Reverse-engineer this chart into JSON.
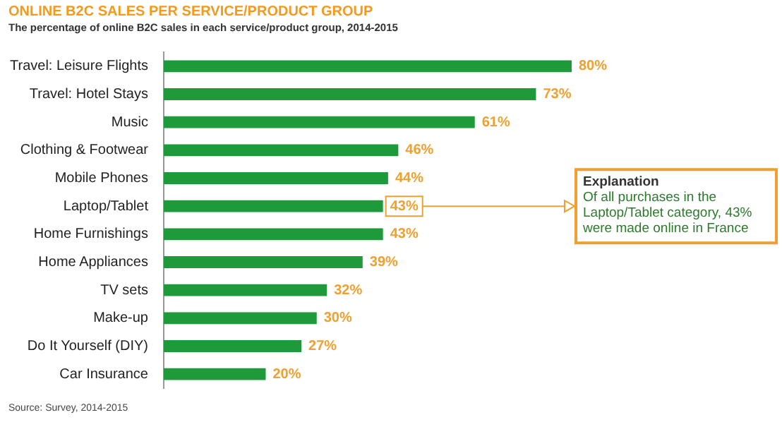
{
  "chart_data": {
    "type": "bar",
    "orientation": "horizontal",
    "title": "ONLINE B2C SALES PER SERVICE/PRODUCT GROUP",
    "subtitle": "The percentage of online B2C sales in each service/product group, 2014-2015",
    "categories": [
      "Travel: Leisure Flights",
      "Travel: Hotel Stays",
      "Music",
      "Clothing & Footwear",
      "Mobile Phones",
      "Laptop/Tablet",
      "Home Furnishings",
      "Home Appliances",
      "TV sets",
      "Make-up",
      "Do It Yourself (DIY)",
      "Car Insurance"
    ],
    "values": [
      80,
      73,
      61,
      46,
      44,
      43,
      43,
      39,
      32,
      30,
      27,
      20
    ],
    "value_labels": [
      "80%",
      "73%",
      "61%",
      "46%",
      "44%",
      "43%",
      "43%",
      "39%",
      "32%",
      "30%",
      "27%",
      "20%"
    ],
    "color": "#1e9a3a",
    "tick_labels": "y",
    "legend": false,
    "annotations": [
      "Explanation",
      "Of all purchases in the Laptop/Tablet category, 43% were made online in France",
      "Source: Survey, 2014-2015"
    ]
  }
}
